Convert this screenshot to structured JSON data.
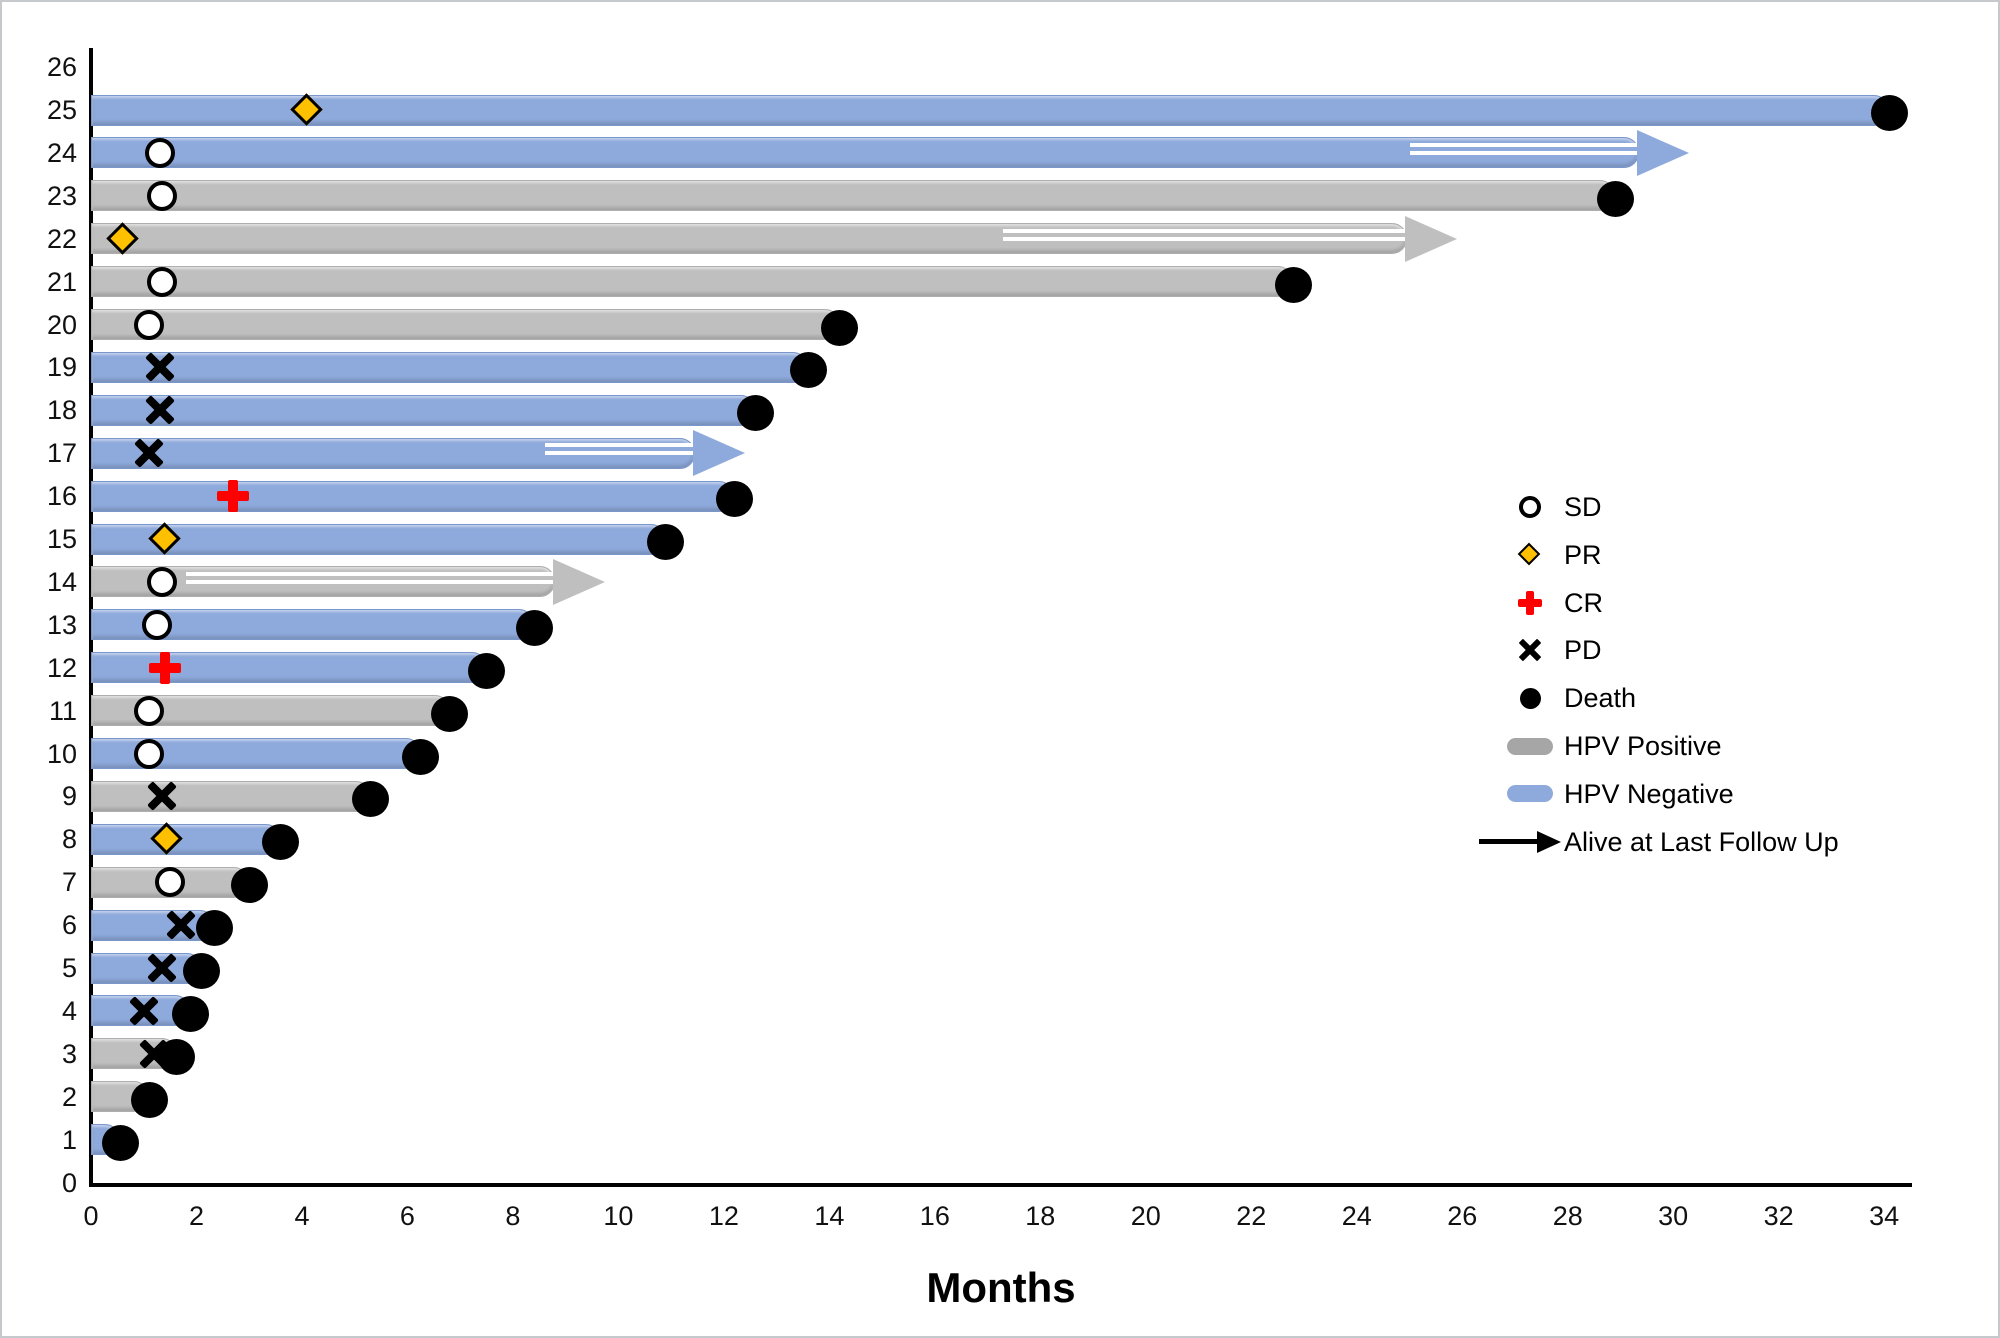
{
  "figure": {
    "background": "#ffffff",
    "border_color": "#c6c9cc"
  },
  "chart_data": {
    "type": "bar",
    "subtype": "swimmer-plot",
    "title": "",
    "xlabel": "Months",
    "ylabel": "",
    "x_axis": {
      "min": 0,
      "max": 34,
      "tick_step": 2,
      "ticks": [
        0,
        2,
        4,
        6,
        8,
        10,
        12,
        14,
        16,
        18,
        20,
        22,
        24,
        26,
        28,
        30,
        32,
        34
      ]
    },
    "y_axis": {
      "min": 0,
      "max": 26,
      "tick_step": 1,
      "ticks": [
        0,
        1,
        2,
        3,
        4,
        5,
        6,
        7,
        8,
        9,
        10,
        11,
        12,
        13,
        14,
        15,
        16,
        17,
        18,
        19,
        20,
        21,
        22,
        23,
        24,
        25,
        26
      ]
    },
    "grid": false,
    "legend_position": "middle-right",
    "colors": {
      "hpv_positive_bar": "#BFBFBF",
      "hpv_negative_bar": "#8EA9DB",
      "pr_marker_fill": "#FFC000",
      "cr_marker": "#FE0000",
      "pd_marker": "#000000",
      "sd_marker_border": "#000000",
      "death_marker": "#000000",
      "legend_gray_pill": "#A6A6A6",
      "legend_blue_pill": "#8EA9DB"
    },
    "legend": [
      {
        "label": "SD",
        "marker": "sd"
      },
      {
        "label": "PR",
        "marker": "pr"
      },
      {
        "label": "CR",
        "marker": "cr"
      },
      {
        "label": "PD",
        "marker": "pd"
      },
      {
        "label": "Death",
        "marker": "death"
      },
      {
        "label": "HPV Positive",
        "marker": "hpv_positive"
      },
      {
        "label": "HPV Negative",
        "marker": "hpv_negative"
      },
      {
        "label": "Alive at Last Follow Up",
        "marker": "arrow"
      }
    ],
    "patients": [
      {
        "id": 1,
        "hpv": "negative",
        "response": null,
        "outcome": "death",
        "end": 0.55
      },
      {
        "id": 2,
        "hpv": "positive",
        "response": null,
        "outcome": "death",
        "end": 1.1
      },
      {
        "id": 3,
        "hpv": "positive",
        "response": {
          "type": "PD",
          "month": 1.2
        },
        "outcome": "death",
        "end": 1.63
      },
      {
        "id": 4,
        "hpv": "negative",
        "response": {
          "type": "PD",
          "month": 1.0
        },
        "outcome": "death",
        "end": 1.88
      },
      {
        "id": 5,
        "hpv": "negative",
        "response": {
          "type": "PD",
          "month": 1.35
        },
        "outcome": "death",
        "end": 2.1
      },
      {
        "id": 6,
        "hpv": "negative",
        "response": {
          "type": "PD",
          "month": 1.7
        },
        "outcome": "death",
        "end": 2.35
      },
      {
        "id": 7,
        "hpv": "positive",
        "response": {
          "type": "SD",
          "month": 1.5
        },
        "outcome": "death",
        "end": 3.0
      },
      {
        "id": 8,
        "hpv": "negative",
        "response": {
          "type": "PR",
          "month": 1.45
        },
        "outcome": "death",
        "end": 3.6
      },
      {
        "id": 9,
        "hpv": "positive",
        "response": {
          "type": "PD",
          "month": 1.35
        },
        "outcome": "death",
        "end": 5.3
      },
      {
        "id": 10,
        "hpv": "negative",
        "response": {
          "type": "SD",
          "month": 1.1
        },
        "outcome": "death",
        "end": 6.25
      },
      {
        "id": 11,
        "hpv": "positive",
        "response": {
          "type": "SD",
          "month": 1.1
        },
        "outcome": "death",
        "end": 6.8
      },
      {
        "id": 12,
        "hpv": "negative",
        "response": {
          "type": "CR",
          "month": 1.4
        },
        "outcome": "death",
        "end": 7.5
      },
      {
        "id": 13,
        "hpv": "negative",
        "response": {
          "type": "SD",
          "month": 1.25
        },
        "outcome": "death",
        "end": 8.4
      },
      {
        "id": 14,
        "hpv": "positive",
        "response": {
          "type": "SD",
          "month": 1.35
        },
        "outcome": "alive",
        "end": 9.75,
        "shaft_start": 1.8
      },
      {
        "id": 15,
        "hpv": "negative",
        "response": {
          "type": "PR",
          "month": 1.4
        },
        "outcome": "death",
        "end": 10.9
      },
      {
        "id": 16,
        "hpv": "negative",
        "response": {
          "type": "CR",
          "month": 2.7
        },
        "outcome": "death",
        "end": 12.2
      },
      {
        "id": 17,
        "hpv": "negative",
        "response": {
          "type": "PD",
          "month": 1.1
        },
        "outcome": "alive",
        "end": 12.4,
        "shaft_start": 8.6
      },
      {
        "id": 18,
        "hpv": "negative",
        "response": {
          "type": "PD",
          "month": 1.3
        },
        "outcome": "death",
        "end": 12.6
      },
      {
        "id": 19,
        "hpv": "negative",
        "response": {
          "type": "PD",
          "month": 1.3
        },
        "outcome": "death",
        "end": 13.6
      },
      {
        "id": 20,
        "hpv": "positive",
        "response": {
          "type": "SD",
          "month": 1.1
        },
        "outcome": "death",
        "end": 14.2
      },
      {
        "id": 21,
        "hpv": "positive",
        "response": {
          "type": "SD",
          "month": 1.35
        },
        "outcome": "death",
        "end": 22.8
      },
      {
        "id": 22,
        "hpv": "positive",
        "response": {
          "type": "PR",
          "month": 0.6
        },
        "outcome": "alive",
        "end": 25.9,
        "shaft_start": 17.3
      },
      {
        "id": 23,
        "hpv": "positive",
        "response": {
          "type": "SD",
          "month": 1.35
        },
        "outcome": "death",
        "end": 28.9
      },
      {
        "id": 24,
        "hpv": "negative",
        "response": {
          "type": "SD",
          "month": 1.3
        },
        "outcome": "alive",
        "end": 30.3,
        "shaft_start": 25.0
      },
      {
        "id": 25,
        "hpv": "negative",
        "response": {
          "type": "PR",
          "month": 4.1
        },
        "outcome": "death",
        "end": 34.1
      }
    ]
  }
}
